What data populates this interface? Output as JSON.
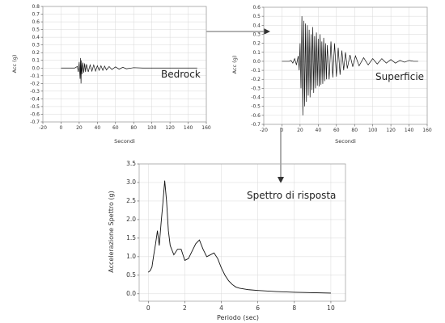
{
  "colors": {
    "trace": "#111111",
    "arrow": "#333333",
    "grid": "#d8d8d8"
  },
  "chart_data": [
    {
      "id": "bedrock",
      "type": "line",
      "annotation": "Bedrock",
      "xlabel": "Secondi",
      "ylabel": "Acc (g)",
      "xlim": [
        -20,
        160
      ],
      "ylim": [
        -0.7,
        0.8
      ],
      "xticks": [
        "-20",
        "0",
        "20",
        "40",
        "60",
        "80",
        "100",
        "120",
        "140",
        "160"
      ],
      "yticks": [
        "-0.7",
        "-0.6",
        "-0.5",
        "-0.4",
        "-0.3",
        "-0.2",
        "-0.1",
        "0.0",
        "0.1",
        "0.2",
        "0.3",
        "0.4",
        "0.5",
        "0.6",
        "0.7",
        "0.8"
      ],
      "grid": true,
      "series": [
        {
          "x": [
            0,
            15,
            18,
            19,
            20,
            21,
            21.5,
            22,
            22.5,
            23,
            24,
            25,
            26,
            27,
            28,
            30,
            32,
            34,
            36,
            38,
            40,
            42,
            44,
            46,
            48,
            50,
            53,
            56,
            60,
            64,
            68,
            72,
            80,
            90,
            100,
            110,
            120,
            130,
            140,
            150
          ],
          "y": [
            0,
            0,
            0.02,
            -0.05,
            0.08,
            -0.14,
            0.13,
            -0.2,
            0.1,
            -0.08,
            0.07,
            -0.06,
            0.06,
            -0.05,
            0.05,
            -0.05,
            0.04,
            -0.04,
            0.04,
            -0.04,
            0.03,
            -0.03,
            0.03,
            -0.03,
            0.025,
            -0.025,
            0.02,
            -0.02,
            0.015,
            -0.015,
            0.01,
            -0.01,
            0.005,
            0,
            0,
            0,
            0,
            0,
            0,
            0
          ]
        }
      ]
    },
    {
      "id": "superficie",
      "type": "line",
      "annotation": "Superficie",
      "xlabel": "Secondi",
      "ylabel": "Acc (g)",
      "xlim": [
        -20,
        160
      ],
      "ylim": [
        -0.7,
        0.6
      ],
      "xticks": [
        "-20",
        "0",
        "20",
        "40",
        "60",
        "80",
        "100",
        "120",
        "140",
        "160"
      ],
      "yticks": [
        "-0.7",
        "-0.6",
        "-0.5",
        "-0.4",
        "-0.3",
        "-0.2",
        "-0.1",
        "0.0",
        "0.1",
        "0.2",
        "0.3",
        "0.4",
        "0.5",
        "0.6"
      ],
      "grid": true,
      "series": [
        {
          "x": [
            0,
            8,
            10,
            12,
            14,
            16,
            18,
            19,
            20,
            21,
            22,
            23,
            24,
            25,
            26,
            27,
            28,
            29,
            30,
            31,
            32,
            33,
            34,
            35,
            36,
            37,
            38,
            39,
            40,
            41,
            42,
            43,
            44,
            45,
            46,
            47,
            48,
            49,
            50,
            52,
            54,
            56,
            58,
            60,
            62,
            64,
            66,
            68,
            70,
            72,
            75,
            78,
            81,
            85,
            90,
            95,
            100,
            105,
            110,
            115,
            120,
            125,
            130,
            135,
            140,
            145,
            150
          ],
          "y": [
            0,
            0,
            0.01,
            -0.02,
            0.03,
            -0.04,
            0.06,
            -0.1,
            0.2,
            -0.3,
            0.5,
            -0.6,
            0.45,
            -0.5,
            0.42,
            -0.45,
            0.4,
            -0.38,
            0.35,
            -0.4,
            0.3,
            -0.32,
            0.38,
            -0.35,
            0.28,
            -0.3,
            0.32,
            -0.27,
            0.25,
            -0.28,
            0.3,
            -0.26,
            0.22,
            -0.25,
            0.26,
            -0.22,
            0.2,
            -0.2,
            0.18,
            -0.2,
            0.22,
            -0.18,
            0.2,
            -0.17,
            0.15,
            -0.15,
            0.12,
            -0.1,
            0.1,
            -0.08,
            0.07,
            -0.06,
            0.06,
            -0.05,
            0.04,
            -0.04,
            0.03,
            -0.03,
            0.03,
            -0.02,
            0.02,
            -0.02,
            0.01,
            -0.01,
            0.01,
            0,
            0
          ]
        }
      ]
    },
    {
      "id": "spettro",
      "type": "line",
      "annotation": "Spettro di risposta",
      "xlabel": "Periodo (sec)",
      "ylabel": "Accelerazione Spettro (g)",
      "xlim": [
        -0.5,
        10.8
      ],
      "ylim": [
        -0.2,
        3.5
      ],
      "xticks": [
        "0",
        "2",
        "4",
        "6",
        "8",
        "10"
      ],
      "yticks": [
        "0.0",
        "0.5",
        "1.0",
        "1.5",
        "2.0",
        "2.5",
        "3.0",
        "3.5"
      ],
      "grid": true,
      "series": [
        {
          "x": [
            0.0,
            0.1,
            0.2,
            0.3,
            0.4,
            0.5,
            0.6,
            0.7,
            0.8,
            0.9,
            1.0,
            1.1,
            1.2,
            1.4,
            1.6,
            1.8,
            2.0,
            2.2,
            2.4,
            2.6,
            2.8,
            3.0,
            3.2,
            3.4,
            3.6,
            3.8,
            4.0,
            4.2,
            4.4,
            4.6,
            4.8,
            5.0,
            5.5,
            6.0,
            7.0,
            8.0,
            9.0,
            10.0
          ],
          "y": [
            0.58,
            0.62,
            0.72,
            1.05,
            1.35,
            1.7,
            1.3,
            1.9,
            2.45,
            3.05,
            2.5,
            1.7,
            1.3,
            1.05,
            1.2,
            1.2,
            0.9,
            0.95,
            1.15,
            1.35,
            1.45,
            1.2,
            1.0,
            1.05,
            1.1,
            0.95,
            0.7,
            0.5,
            0.35,
            0.25,
            0.18,
            0.15,
            0.11,
            0.09,
            0.06,
            0.04,
            0.03,
            0.02
          ]
        }
      ]
    }
  ]
}
